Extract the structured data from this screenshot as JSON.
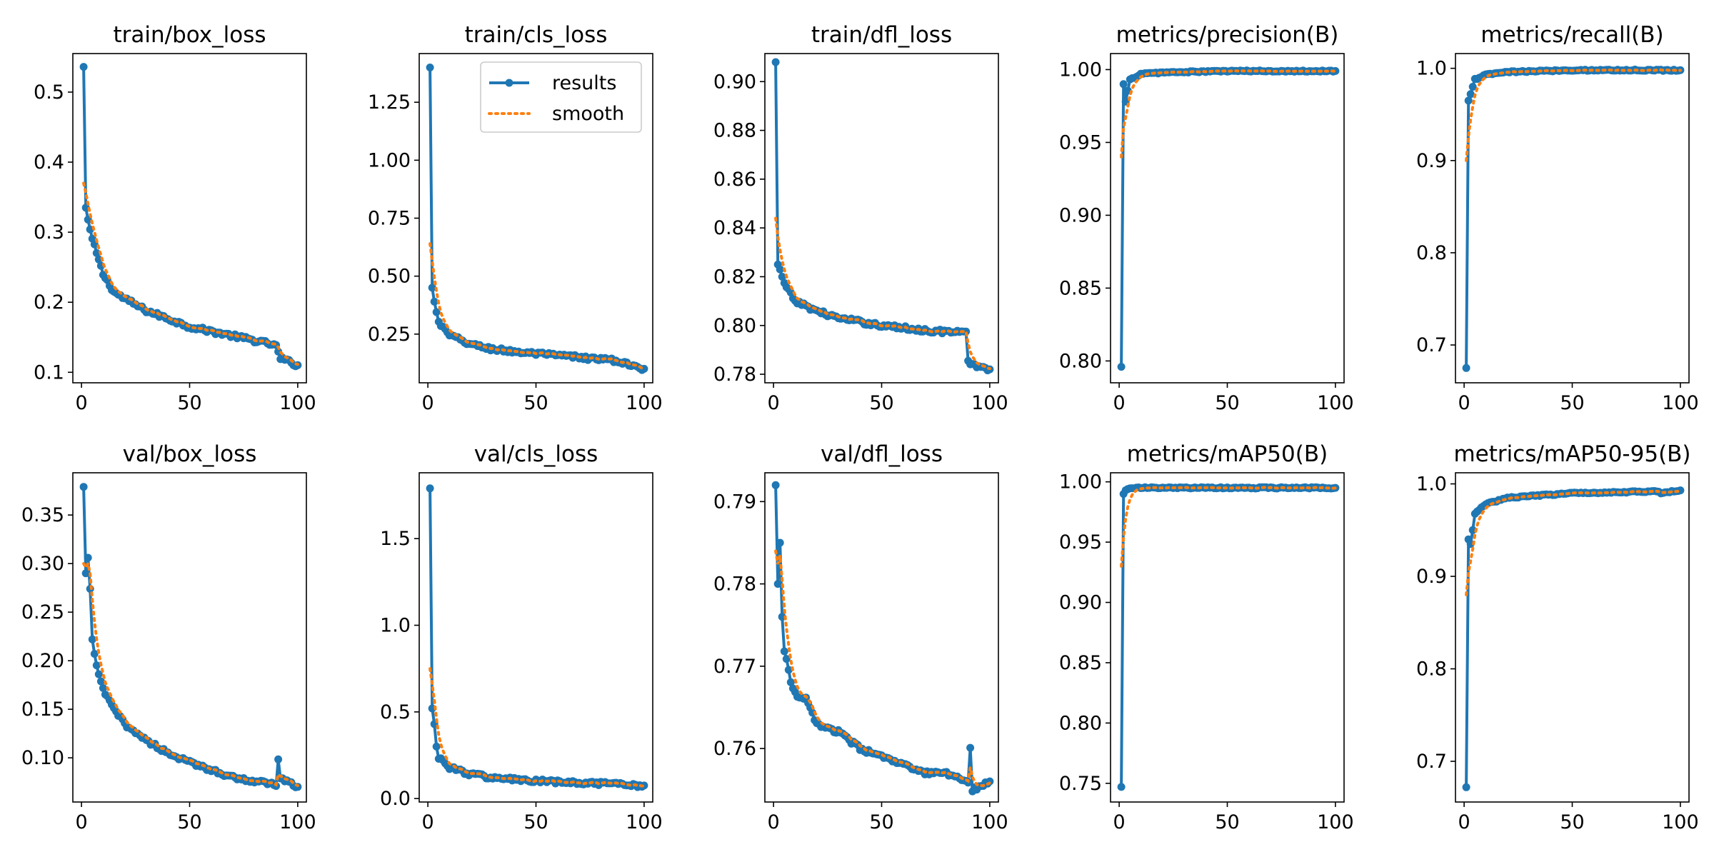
{
  "legend": {
    "results_label": "results",
    "smooth_label": "smooth"
  },
  "colors": {
    "results": "#1f77b4",
    "smooth": "#ff7f0e"
  },
  "chart_data": [
    {
      "type": "line",
      "title": "train/box_loss",
      "xlim": [
        -4,
        104
      ],
      "ylim": [
        0.085,
        0.555
      ],
      "xticks": [
        0,
        50,
        100
      ],
      "xtick_labels": [
        "0",
        "50",
        "100"
      ],
      "yticks": [
        0.1,
        0.2,
        0.3,
        0.4,
        0.5
      ],
      "ytick_labels": [
        "0.1",
        "0.2",
        "0.3",
        "0.4",
        "0.5"
      ],
      "curve": "decay",
      "start": 0.536,
      "keypoints": [
        [
          1,
          0.536
        ],
        [
          2,
          0.335
        ],
        [
          3,
          0.318
        ],
        [
          5,
          0.29
        ],
        [
          10,
          0.24
        ],
        [
          15,
          0.215
        ],
        [
          20,
          0.205
        ],
        [
          30,
          0.188
        ],
        [
          50,
          0.165
        ],
        [
          70,
          0.152
        ],
        [
          88,
          0.14
        ],
        [
          90,
          0.137
        ],
        [
          92,
          0.12
        ],
        [
          100,
          0.11
        ]
      ],
      "smooth_start": 0.37
    },
    {
      "type": "line",
      "title": "train/cls_loss",
      "xlim": [
        -4,
        104
      ],
      "ylim": [
        0.04,
        1.46
      ],
      "xticks": [
        0,
        50,
        100
      ],
      "xtick_labels": [
        "0",
        "50",
        "100"
      ],
      "yticks": [
        0.25,
        0.5,
        0.75,
        1.0,
        1.25
      ],
      "ytick_labels": [
        "0.25",
        "0.50",
        "0.75",
        "1.00",
        "1.25"
      ],
      "curve": "decay",
      "keypoints": [
        [
          1,
          1.4
        ],
        [
          2,
          0.45
        ],
        [
          3,
          0.39
        ],
        [
          5,
          0.3
        ],
        [
          10,
          0.245
        ],
        [
          20,
          0.205
        ],
        [
          30,
          0.185
        ],
        [
          50,
          0.165
        ],
        [
          70,
          0.15
        ],
        [
          88,
          0.135
        ],
        [
          90,
          0.125
        ],
        [
          100,
          0.1
        ]
      ],
      "smooth_start": 0.64
    },
    {
      "type": "line",
      "title": "train/dfl_loss",
      "xlim": [
        -4,
        104
      ],
      "ylim": [
        0.7765,
        0.9115
      ],
      "xticks": [
        0,
        50,
        100
      ],
      "xtick_labels": [
        "0",
        "50",
        "100"
      ],
      "yticks": [
        0.78,
        0.8,
        0.82,
        0.84,
        0.86,
        0.88,
        0.9
      ],
      "ytick_labels": [
        "0.78",
        "0.80",
        "0.82",
        "0.84",
        "0.86",
        "0.88",
        "0.90"
      ],
      "curve": "decay",
      "keypoints": [
        [
          1,
          0.908
        ],
        [
          2,
          0.825
        ],
        [
          3,
          0.823
        ],
        [
          5,
          0.817
        ],
        [
          10,
          0.81
        ],
        [
          20,
          0.806
        ],
        [
          30,
          0.803
        ],
        [
          50,
          0.8
        ],
        [
          70,
          0.798
        ],
        [
          89,
          0.797
        ],
        [
          90,
          0.785
        ],
        [
          92,
          0.784
        ],
        [
          100,
          0.782
        ]
      ],
      "smooth_start": 0.844
    },
    {
      "type": "line",
      "title": "metrics/precision(B)",
      "xlim": [
        -4,
        104
      ],
      "ylim": [
        0.785,
        1.011
      ],
      "xticks": [
        0,
        50,
        100
      ],
      "xtick_labels": [
        "0",
        "50",
        "100"
      ],
      "yticks": [
        0.8,
        0.85,
        0.9,
        0.95,
        1.0
      ],
      "ytick_labels": [
        "0.80",
        "0.85",
        "0.90",
        "0.95",
        "1.00"
      ],
      "curve": "rise",
      "keypoints": [
        [
          1,
          0.796
        ],
        [
          2,
          0.99
        ],
        [
          3,
          0.978
        ],
        [
          5,
          0.993
        ],
        [
          10,
          0.997
        ],
        [
          20,
          0.998
        ],
        [
          50,
          0.999
        ],
        [
          100,
          0.999
        ]
      ],
      "smooth_start": 0.94
    },
    {
      "type": "line",
      "title": "metrics/recall(B)",
      "xlim": [
        -4,
        104
      ],
      "ylim": [
        0.659,
        1.016
      ],
      "xticks": [
        0,
        50,
        100
      ],
      "xtick_labels": [
        "0",
        "50",
        "100"
      ],
      "yticks": [
        0.7,
        0.8,
        0.9,
        1.0
      ],
      "ytick_labels": [
        "0.7",
        "0.8",
        "0.9",
        "1.0"
      ],
      "curve": "rise",
      "keypoints": [
        [
          1,
          0.675
        ],
        [
          2,
          0.965
        ],
        [
          3,
          0.972
        ],
        [
          5,
          0.988
        ],
        [
          10,
          0.993
        ],
        [
          20,
          0.996
        ],
        [
          50,
          0.998
        ],
        [
          100,
          0.998
        ]
      ],
      "smooth_start": 0.9
    },
    {
      "type": "line",
      "title": "val/box_loss",
      "xlim": [
        -4,
        104
      ],
      "ylim": [
        0.0545,
        0.3935
      ],
      "xticks": [
        0,
        50,
        100
      ],
      "xtick_labels": [
        "0",
        "50",
        "100"
      ],
      "yticks": [
        0.1,
        0.15,
        0.2,
        0.25,
        0.3,
        0.35
      ],
      "ytick_labels": [
        "0.10",
        "0.15",
        "0.20",
        "0.25",
        "0.30",
        "0.35"
      ],
      "curve": "decay",
      "keypoints": [
        [
          1,
          0.379
        ],
        [
          2,
          0.29
        ],
        [
          3,
          0.306
        ],
        [
          4,
          0.274
        ],
        [
          5,
          0.22
        ],
        [
          7,
          0.195
        ],
        [
          10,
          0.17
        ],
        [
          15,
          0.15
        ],
        [
          20,
          0.135
        ],
        [
          30,
          0.118
        ],
        [
          40,
          0.105
        ],
        [
          50,
          0.095
        ],
        [
          60,
          0.088
        ],
        [
          70,
          0.08
        ],
        [
          80,
          0.076
        ],
        [
          90,
          0.072
        ],
        [
          91,
          0.1
        ],
        [
          92,
          0.078
        ],
        [
          100,
          0.07
        ]
      ],
      "smooth_start": 0.3
    },
    {
      "type": "line",
      "title": "val/cls_loss",
      "xlim": [
        -4,
        104
      ],
      "ylim": [
        -0.02,
        1.88
      ],
      "xticks": [
        0,
        50,
        100
      ],
      "xtick_labels": [
        "0",
        "50",
        "100"
      ],
      "yticks": [
        0.0,
        0.5,
        1.0,
        1.5
      ],
      "ytick_labels": [
        "0.0",
        "0.5",
        "1.0",
        "1.5"
      ],
      "curve": "decay",
      "keypoints": [
        [
          1,
          1.79
        ],
        [
          2,
          0.52
        ],
        [
          3,
          0.43
        ],
        [
          4,
          0.3
        ],
        [
          5,
          0.24
        ],
        [
          10,
          0.18
        ],
        [
          20,
          0.14
        ],
        [
          30,
          0.12
        ],
        [
          50,
          0.1
        ],
        [
          70,
          0.09
        ],
        [
          90,
          0.08
        ],
        [
          100,
          0.075
        ]
      ],
      "smooth_start": 0.75
    },
    {
      "type": "line",
      "title": "val/dfl_loss",
      "xlim": [
        -4,
        104
      ],
      "ylim": [
        0.7535,
        0.7935
      ],
      "xticks": [
        0,
        50,
        100
      ],
      "xtick_labels": [
        "0",
        "50",
        "100"
      ],
      "yticks": [
        0.76,
        0.77,
        0.78,
        0.79
      ],
      "ytick_labels": [
        "0.76",
        "0.77",
        "0.78",
        "0.79"
      ],
      "curve": "decay",
      "keypoints": [
        [
          1,
          0.792
        ],
        [
          2,
          0.78
        ],
        [
          3,
          0.785
        ],
        [
          4,
          0.776
        ],
        [
          5,
          0.772
        ],
        [
          8,
          0.768
        ],
        [
          12,
          0.766
        ],
        [
          15,
          0.766
        ],
        [
          20,
          0.763
        ],
        [
          30,
          0.762
        ],
        [
          40,
          0.76
        ],
        [
          50,
          0.759
        ],
        [
          60,
          0.758
        ],
        [
          70,
          0.757
        ],
        [
          80,
          0.757
        ],
        [
          90,
          0.756
        ],
        [
          91,
          0.76
        ],
        [
          92,
          0.755
        ],
        [
          100,
          0.756
        ]
      ],
      "smooth_start": 0.784
    },
    {
      "type": "line",
      "title": "metrics/mAP50(B)",
      "xlim": [
        -4,
        104
      ],
      "ylim": [
        0.7345,
        1.0075
      ],
      "xticks": [
        0,
        50,
        100
      ],
      "xtick_labels": [
        "0",
        "50",
        "100"
      ],
      "yticks": [
        0.75,
        0.8,
        0.85,
        0.9,
        0.95,
        1.0
      ],
      "ytick_labels": [
        "0.75",
        "0.80",
        "0.85",
        "0.90",
        "0.95",
        "1.00"
      ],
      "curve": "rise",
      "keypoints": [
        [
          1,
          0.747
        ],
        [
          2,
          0.99
        ],
        [
          3,
          0.993
        ],
        [
          5,
          0.995
        ],
        [
          100,
          0.995
        ]
      ],
      "smooth_start": 0.93
    },
    {
      "type": "line",
      "title": "metrics/mAP50-95(B)",
      "xlim": [
        -4,
        104
      ],
      "ylim": [
        0.656,
        1.012
      ],
      "xticks": [
        0,
        50,
        100
      ],
      "xtick_labels": [
        "0",
        "50",
        "100"
      ],
      "yticks": [
        0.7,
        0.8,
        0.9,
        1.0
      ],
      "ytick_labels": [
        "0.7",
        "0.8",
        "0.9",
        "1.0"
      ],
      "curve": "rise",
      "keypoints": [
        [
          1,
          0.672
        ],
        [
          2,
          0.94
        ],
        [
          3,
          0.935
        ],
        [
          4,
          0.95
        ],
        [
          5,
          0.968
        ],
        [
          10,
          0.978
        ],
        [
          20,
          0.985
        ],
        [
          50,
          0.99
        ],
        [
          90,
          0.992
        ],
        [
          91,
          0.99
        ],
        [
          100,
          0.993
        ]
      ],
      "smooth_start": 0.88
    }
  ]
}
